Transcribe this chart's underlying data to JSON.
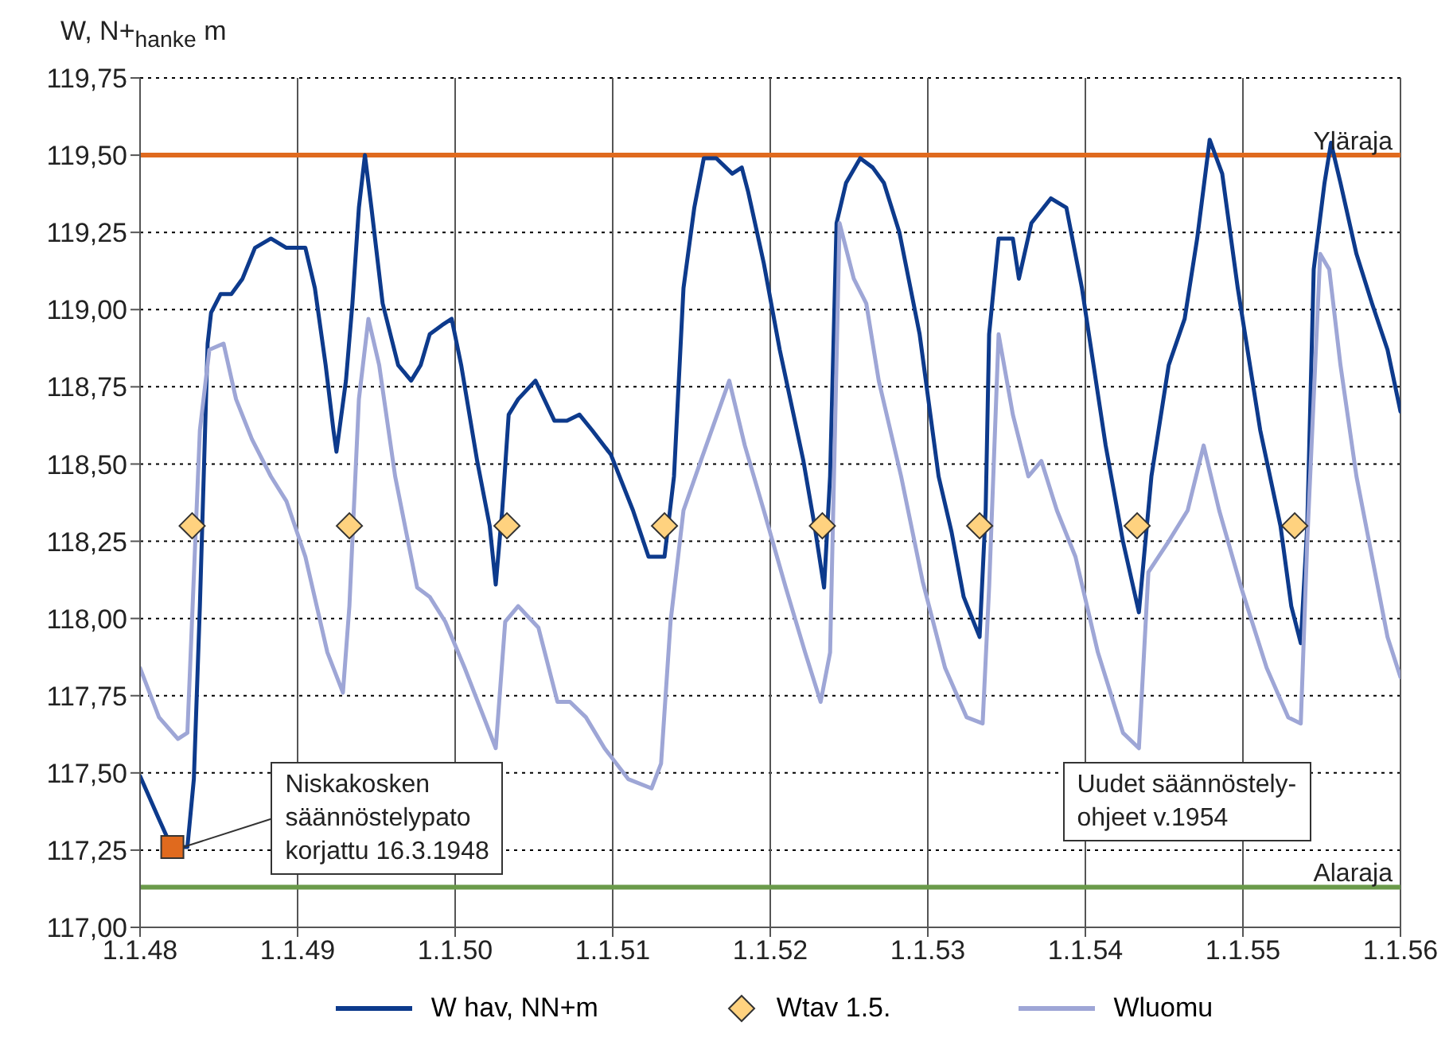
{
  "chart_data": {
    "type": "line",
    "ylabel": "W, N+$_{hanke}$ m",
    "xlim": [
      "1948-01-01",
      "1956-01-01"
    ],
    "xticks": [
      {
        "value": "1948-01-01",
        "label": "1.1.48"
      },
      {
        "value": "1949-01-01",
        "label": "1.1.49"
      },
      {
        "value": "1950-01-01",
        "label": "1.1.50"
      },
      {
        "value": "1951-01-01",
        "label": "1.1.51"
      },
      {
        "value": "1952-01-01",
        "label": "1.1.52"
      },
      {
        "value": "1953-01-01",
        "label": "1.1.53"
      },
      {
        "value": "1954-01-01",
        "label": "1.1.54"
      },
      {
        "value": "1955-01-01",
        "label": "1.1.55"
      },
      {
        "value": "1956-01-01",
        "label": "1.1.56"
      }
    ],
    "ylim": [
      117,
      119.75
    ],
    "yticks": [
      {
        "value": 117,
        "label": "117,00"
      },
      {
        "value": 117.25,
        "label": "117,25"
      },
      {
        "value": 117.5,
        "label": "117,50"
      },
      {
        "value": 117.75,
        "label": "117,75"
      },
      {
        "value": 118,
        "label": "118,00"
      },
      {
        "value": 118.25,
        "label": "118,25"
      },
      {
        "value": 118.5,
        "label": "118,50"
      },
      {
        "value": 118.75,
        "label": "118,75"
      },
      {
        "value": 119,
        "label": "119,00"
      },
      {
        "value": 119.25,
        "label": "119,25"
      },
      {
        "value": 119.5,
        "label": "119,50"
      },
      {
        "value": 119.75,
        "label": "119,75"
      }
    ],
    "grid": true,
    "legend": "bottom",
    "line_style": "solid",
    "marker": "none",
    "series": [
      {
        "name": "W hav, NN+m",
        "color": "#0d3a8c",
        "x": [
          "1948-01-01",
          "1948-02-14",
          "1948-03-14",
          "1948-04-20",
          "1948-05-05",
          "1948-05-19",
          "1948-06-06",
          "1948-06-14",
          "1948-07-06",
          "1948-07-31",
          "1948-08-26",
          "1948-09-24",
          "1948-10-31",
          "1948-12-06",
          "1949-01-19",
          "1949-02-10",
          "1949-03-07",
          "1949-03-25",
          "1949-04-01",
          "1949-04-23",
          "1949-05-08",
          "1949-05-23",
          "1949-06-06",
          "1949-06-21",
          "1949-07-17",
          "1949-08-22",
          "1949-09-21",
          "1949-10-13",
          "1949-11-03",
          "1949-12-02",
          "1949-12-24",
          "1950-01-15",
          "1950-02-21",
          "1950-03-22",
          "1950-04-05",
          "1950-04-20",
          "1950-05-05",
          "1950-05-27",
          "1950-07-06",
          "1950-08-19",
          "1950-09-17",
          "1950-10-16",
          "1950-11-14",
          "1950-12-28",
          "1951-02-17",
          "1951-03-25",
          "1951-05-01",
          "1951-05-23",
          "1951-06-14",
          "1951-07-09",
          "1951-07-31",
          "1951-08-29",
          "1951-10-05",
          "1951-10-27",
          "1951-11-11",
          "1951-12-17",
          "1952-01-23",
          "1952-03-18",
          "1952-04-13",
          "1952-05-05",
          "1952-05-19",
          "1952-06-03",
          "1952-06-25",
          "1952-07-28",
          "1952-08-26",
          "1952-09-21",
          "1952-10-27",
          "1952-12-13",
          "1953-01-26",
          "1953-02-25",
          "1953-03-25",
          "1953-05-01",
          "1953-05-15",
          "1953-05-23",
          "1953-06-14",
          "1953-07-17",
          "1953-07-31",
          "1953-08-29",
          "1953-10-13",
          "1953-11-18",
          "1953-12-24",
          "1954-02-17",
          "1954-03-29",
          "1954-05-05",
          "1954-06-03",
          "1954-07-13",
          "1954-08-19",
          "1954-09-17",
          "1954-10-16",
          "1954-11-14",
          "1954-12-20",
          "1955-02-10",
          "1955-03-29",
          "1955-04-23",
          "1955-05-15",
          "1955-05-30",
          "1955-06-14",
          "1955-07-09",
          "1955-07-24",
          "1955-08-15",
          "1955-09-21",
          "1955-10-27",
          "1955-12-02",
          "1956-01-01"
        ],
        "values": [
          117.49,
          117.35,
          117.26,
          117.26,
          117.48,
          118.04,
          118.89,
          118.99,
          119.05,
          119.05,
          119.1,
          119.2,
          119.23,
          119.2,
          119.2,
          119.07,
          118.82,
          118.61,
          118.54,
          118.77,
          119.02,
          119.33,
          119.5,
          119.33,
          119.02,
          118.82,
          118.77,
          118.82,
          118.92,
          118.95,
          118.97,
          118.82,
          118.51,
          118.3,
          118.11,
          118.35,
          118.66,
          118.71,
          118.77,
          118.64,
          118.64,
          118.66,
          118.61,
          118.53,
          118.35,
          118.2,
          118.2,
          118.46,
          119.07,
          119.33,
          119.49,
          119.49,
          119.44,
          119.46,
          119.38,
          119.15,
          118.87,
          118.51,
          118.3,
          118.1,
          118.46,
          119.28,
          119.41,
          119.49,
          119.46,
          119.41,
          119.25,
          118.92,
          118.46,
          118.28,
          118.07,
          117.94,
          118.35,
          118.92,
          119.23,
          119.23,
          119.1,
          119.28,
          119.36,
          119.33,
          119.07,
          118.56,
          118.25,
          118.02,
          118.46,
          118.82,
          118.97,
          119.23,
          119.55,
          119.44,
          119.07,
          118.61,
          118.3,
          118.04,
          117.92,
          118.3,
          119.13,
          119.41,
          119.54,
          119.41,
          119.18,
          119.02,
          118.87,
          118.67
        ]
      },
      {
        "name": "Wtav 1.5.",
        "type": "scatter",
        "color": "#ffd27f",
        "marker": "diamond",
        "x": [
          "1948-05-01",
          "1949-05-01",
          "1950-05-01",
          "1951-05-01",
          "1952-05-01",
          "1953-05-01",
          "1954-05-01",
          "1955-05-01"
        ],
        "values": [
          118.3,
          118.3,
          118.3,
          118.3,
          118.3,
          118.3,
          118.3,
          118.3
        ]
      },
      {
        "name": "Wluomu",
        "color": "#9ea6d6",
        "x": [
          "1948-01-01",
          "1948-02-14",
          "1948-03-29",
          "1948-04-20",
          "1948-05-19",
          "1948-06-10",
          "1948-07-13",
          "1948-08-11",
          "1948-09-17",
          "1948-10-31",
          "1948-12-06",
          "1949-01-19",
          "1949-03-11",
          "1949-04-16",
          "1949-05-01",
          "1949-05-23",
          "1949-06-14",
          "1949-07-09",
          "1949-08-15",
          "1949-10-05",
          "1949-11-03",
          "1949-12-09",
          "1950-01-23",
          "1950-03-14",
          "1950-04-05",
          "1950-04-27",
          "1950-05-27",
          "1950-07-13",
          "1950-08-26",
          "1950-09-24",
          "1950-10-31",
          "1950-12-13",
          "1951-02-06",
          "1951-04-01",
          "1951-04-23",
          "1951-05-15",
          "1951-06-14",
          "1951-07-24",
          "1951-09-28",
          "1951-11-03",
          "1951-12-17",
          "1952-02-06",
          "1952-03-22",
          "1952-04-27",
          "1952-05-19",
          "1952-06-10",
          "1952-07-13",
          "1952-08-11",
          "1952-09-09",
          "1952-10-31",
          "1952-12-20",
          "1953-02-10",
          "1953-04-01",
          "1953-05-08",
          "1953-05-23",
          "1953-06-14",
          "1953-07-17",
          "1953-08-22",
          "1953-09-21",
          "1953-10-27",
          "1953-12-09",
          "1954-01-30",
          "1954-03-29",
          "1954-05-05",
          "1954-05-27",
          "1954-07-13",
          "1954-08-26",
          "1954-10-02",
          "1954-11-07",
          "1954-12-28",
          "1955-02-25",
          "1955-04-16",
          "1955-05-15",
          "1955-05-30",
          "1955-06-29",
          "1955-07-20",
          "1955-08-15",
          "1955-09-21",
          "1955-10-27",
          "1955-12-02",
          "1956-01-01"
        ],
        "values": [
          117.84,
          117.68,
          117.61,
          117.63,
          118.61,
          118.87,
          118.89,
          118.71,
          118.58,
          118.46,
          118.38,
          118.2,
          117.89,
          117.76,
          118.04,
          118.71,
          118.97,
          118.82,
          118.46,
          118.1,
          118.07,
          117.99,
          117.84,
          117.66,
          117.58,
          117.99,
          118.04,
          117.97,
          117.73,
          117.73,
          117.68,
          117.58,
          117.48,
          117.45,
          117.53,
          117.99,
          118.35,
          118.51,
          118.77,
          118.56,
          118.35,
          118.1,
          117.89,
          117.73,
          117.89,
          119.28,
          119.1,
          119.02,
          118.77,
          118.46,
          118.12,
          117.84,
          117.68,
          117.66,
          118.1,
          118.92,
          118.66,
          118.46,
          118.51,
          118.35,
          118.2,
          117.89,
          117.63,
          117.58,
          118.15,
          118.25,
          118.35,
          118.56,
          118.35,
          118.1,
          117.84,
          117.68,
          117.66,
          118.25,
          119.18,
          119.13,
          118.82,
          118.46,
          118.2,
          117.94,
          117.81
        ]
      }
    ],
    "ref_lines": [
      {
        "axis": "y",
        "value": 119.5,
        "label": "Yläraja",
        "color": "#e06a1e"
      },
      {
        "axis": "y",
        "value": 117.13,
        "label": "Alaraja",
        "color": "#6a9a4a"
      }
    ],
    "annotations": [
      {
        "text": "Niskakosken\nsäännöstelypato\nkorjattu 16.3.1948",
        "x": "1948-03-16",
        "y": 117.26
      },
      "Uudet säännöstely-\nohjeet v.1954"
    ]
  }
}
